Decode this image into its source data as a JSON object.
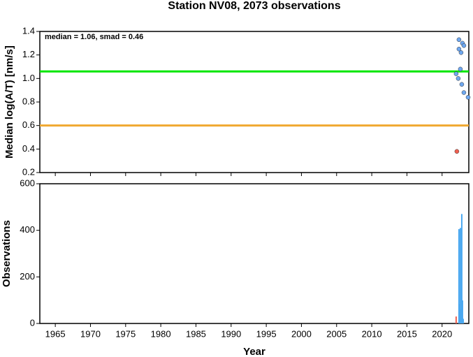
{
  "chart_data": [
    {
      "type": "scatter",
      "title": "Station NV08, 2073 observations",
      "y_label": "Median log(A/T) [nm/s]",
      "annotation": "median = 1.06, smad = 0.46",
      "xlim": [
        1962.8,
        2023.8
      ],
      "xticks": [
        1965,
        1970,
        1975,
        1980,
        1985,
        1990,
        1995,
        2000,
        2005,
        2010,
        2015,
        2020
      ],
      "ylim": [
        0.2,
        1.4
      ],
      "yticks": [
        0.2,
        0.4,
        0.6,
        0.8,
        {
          "value": 1,
          "label": "1.0"
        },
        1.2,
        1.4
      ],
      "hlines": [
        {
          "value": 1.06,
          "color": "#00e600"
        },
        {
          "value": 0.6,
          "color": "#f0a830"
        }
      ],
      "series": [
        {
          "color": "#6fa8f0",
          "x": [
            2022.0,
            2022.4,
            2022.9,
            2023.1,
            2022.4,
            2022.7,
            2022.6,
            2022.3,
            2022.8,
            2023.1,
            2023.7
          ],
          "values": [
            1.04,
            1.33,
            1.3,
            1.28,
            1.25,
            1.22,
            1.08,
            1.0,
            0.95,
            0.88,
            0.84
          ]
        },
        {
          "color": "#f06050",
          "x": [
            2022.1
          ],
          "values": [
            0.38
          ]
        }
      ]
    },
    {
      "type": "bar",
      "x_label": "Year",
      "y_label": "Observations",
      "xlim": [
        1962.8,
        2023.8
      ],
      "xticks": [
        1965,
        1970,
        1975,
        1980,
        1985,
        1990,
        1995,
        2000,
        2005,
        2010,
        2015,
        2020
      ],
      "ylim": [
        0,
        600
      ],
      "yticks": [
        0,
        200,
        400,
        600
      ],
      "series": [
        {
          "color": "#f06050",
          "x": [
            2022.0
          ],
          "values": [
            30
          ]
        },
        {
          "color": "#4aa8f0",
          "x": [
            2022.4,
            2022.5,
            2022.6,
            2022.7,
            2022.8,
            2022.9,
            2023.0
          ],
          "values": [
            405,
            84,
            410,
            60,
            470,
            99,
            20
          ]
        }
      ]
    }
  ]
}
